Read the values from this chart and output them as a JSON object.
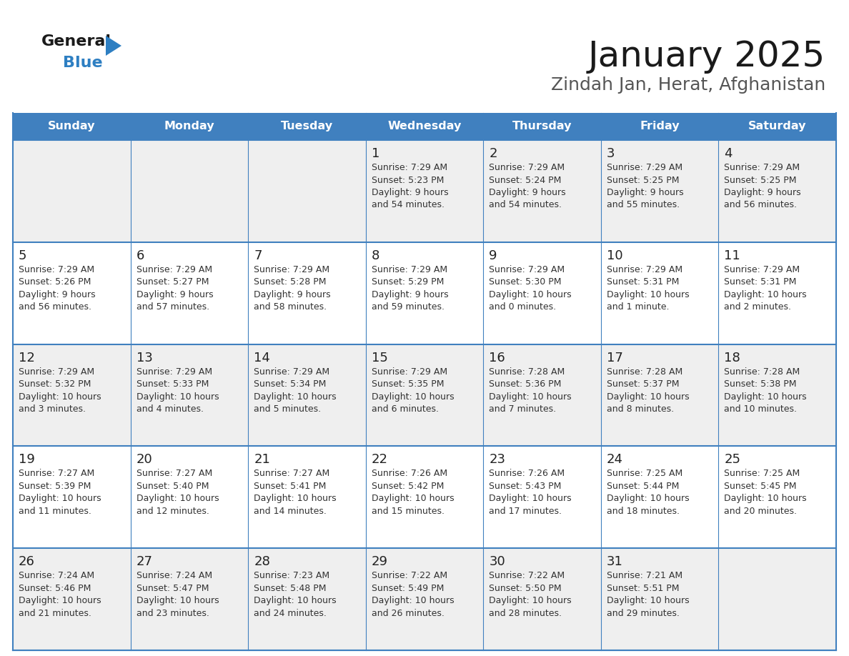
{
  "title": "January 2025",
  "subtitle": "Zindah Jan, Herat, Afghanistan",
  "header_bg": "#4080bf",
  "header_text": "#ffffff",
  "day_names": [
    "Sunday",
    "Monday",
    "Tuesday",
    "Wednesday",
    "Thursday",
    "Friday",
    "Saturday"
  ],
  "row_bg_odd": "#efefef",
  "row_bg_even": "#ffffff",
  "cell_border_color": "#4080bf",
  "date_color": "#222222",
  "info_color": "#333333",
  "logo_general_color": "#1a1a1a",
  "logo_blue_color": "#2e7fc2",
  "calendar": [
    [
      null,
      null,
      null,
      {
        "day": "1",
        "sunrise": "7:29 AM",
        "sunset": "5:23 PM",
        "daylight_h": "9 hours",
        "daylight_m": "54 minutes"
      },
      {
        "day": "2",
        "sunrise": "7:29 AM",
        "sunset": "5:24 PM",
        "daylight_h": "9 hours",
        "daylight_m": "54 minutes"
      },
      {
        "day": "3",
        "sunrise": "7:29 AM",
        "sunset": "5:25 PM",
        "daylight_h": "9 hours",
        "daylight_m": "55 minutes"
      },
      {
        "day": "4",
        "sunrise": "7:29 AM",
        "sunset": "5:25 PM",
        "daylight_h": "9 hours",
        "daylight_m": "56 minutes"
      }
    ],
    [
      {
        "day": "5",
        "sunrise": "7:29 AM",
        "sunset": "5:26 PM",
        "daylight_h": "9 hours",
        "daylight_m": "56 minutes"
      },
      {
        "day": "6",
        "sunrise": "7:29 AM",
        "sunset": "5:27 PM",
        "daylight_h": "9 hours",
        "daylight_m": "57 minutes"
      },
      {
        "day": "7",
        "sunrise": "7:29 AM",
        "sunset": "5:28 PM",
        "daylight_h": "9 hours",
        "daylight_m": "58 minutes"
      },
      {
        "day": "8",
        "sunrise": "7:29 AM",
        "sunset": "5:29 PM",
        "daylight_h": "9 hours",
        "daylight_m": "59 minutes"
      },
      {
        "day": "9",
        "sunrise": "7:29 AM",
        "sunset": "5:30 PM",
        "daylight_h": "10 hours",
        "daylight_m": "0 minutes"
      },
      {
        "day": "10",
        "sunrise": "7:29 AM",
        "sunset": "5:31 PM",
        "daylight_h": "10 hours",
        "daylight_m": "1 minute"
      },
      {
        "day": "11",
        "sunrise": "7:29 AM",
        "sunset": "5:31 PM",
        "daylight_h": "10 hours",
        "daylight_m": "2 minutes"
      }
    ],
    [
      {
        "day": "12",
        "sunrise": "7:29 AM",
        "sunset": "5:32 PM",
        "daylight_h": "10 hours",
        "daylight_m": "3 minutes"
      },
      {
        "day": "13",
        "sunrise": "7:29 AM",
        "sunset": "5:33 PM",
        "daylight_h": "10 hours",
        "daylight_m": "4 minutes"
      },
      {
        "day": "14",
        "sunrise": "7:29 AM",
        "sunset": "5:34 PM",
        "daylight_h": "10 hours",
        "daylight_m": "5 minutes"
      },
      {
        "day": "15",
        "sunrise": "7:29 AM",
        "sunset": "5:35 PM",
        "daylight_h": "10 hours",
        "daylight_m": "6 minutes"
      },
      {
        "day": "16",
        "sunrise": "7:28 AM",
        "sunset": "5:36 PM",
        "daylight_h": "10 hours",
        "daylight_m": "7 minutes"
      },
      {
        "day": "17",
        "sunrise": "7:28 AM",
        "sunset": "5:37 PM",
        "daylight_h": "10 hours",
        "daylight_m": "8 minutes"
      },
      {
        "day": "18",
        "sunrise": "7:28 AM",
        "sunset": "5:38 PM",
        "daylight_h": "10 hours",
        "daylight_m": "10 minutes"
      }
    ],
    [
      {
        "day": "19",
        "sunrise": "7:27 AM",
        "sunset": "5:39 PM",
        "daylight_h": "10 hours",
        "daylight_m": "11 minutes"
      },
      {
        "day": "20",
        "sunrise": "7:27 AM",
        "sunset": "5:40 PM",
        "daylight_h": "10 hours",
        "daylight_m": "12 minutes"
      },
      {
        "day": "21",
        "sunrise": "7:27 AM",
        "sunset": "5:41 PM",
        "daylight_h": "10 hours",
        "daylight_m": "14 minutes"
      },
      {
        "day": "22",
        "sunrise": "7:26 AM",
        "sunset": "5:42 PM",
        "daylight_h": "10 hours",
        "daylight_m": "15 minutes"
      },
      {
        "day": "23",
        "sunrise": "7:26 AM",
        "sunset": "5:43 PM",
        "daylight_h": "10 hours",
        "daylight_m": "17 minutes"
      },
      {
        "day": "24",
        "sunrise": "7:25 AM",
        "sunset": "5:44 PM",
        "daylight_h": "10 hours",
        "daylight_m": "18 minutes"
      },
      {
        "day": "25",
        "sunrise": "7:25 AM",
        "sunset": "5:45 PM",
        "daylight_h": "10 hours",
        "daylight_m": "20 minutes"
      }
    ],
    [
      {
        "day": "26",
        "sunrise": "7:24 AM",
        "sunset": "5:46 PM",
        "daylight_h": "10 hours",
        "daylight_m": "21 minutes"
      },
      {
        "day": "27",
        "sunrise": "7:24 AM",
        "sunset": "5:47 PM",
        "daylight_h": "10 hours",
        "daylight_m": "23 minutes"
      },
      {
        "day": "28",
        "sunrise": "7:23 AM",
        "sunset": "5:48 PM",
        "daylight_h": "10 hours",
        "daylight_m": "24 minutes"
      },
      {
        "day": "29",
        "sunrise": "7:22 AM",
        "sunset": "5:49 PM",
        "daylight_h": "10 hours",
        "daylight_m": "26 minutes"
      },
      {
        "day": "30",
        "sunrise": "7:22 AM",
        "sunset": "5:50 PM",
        "daylight_h": "10 hours",
        "daylight_m": "28 minutes"
      },
      {
        "day": "31",
        "sunrise": "7:21 AM",
        "sunset": "5:51 PM",
        "daylight_h": "10 hours",
        "daylight_m": "29 minutes"
      },
      null
    ]
  ]
}
